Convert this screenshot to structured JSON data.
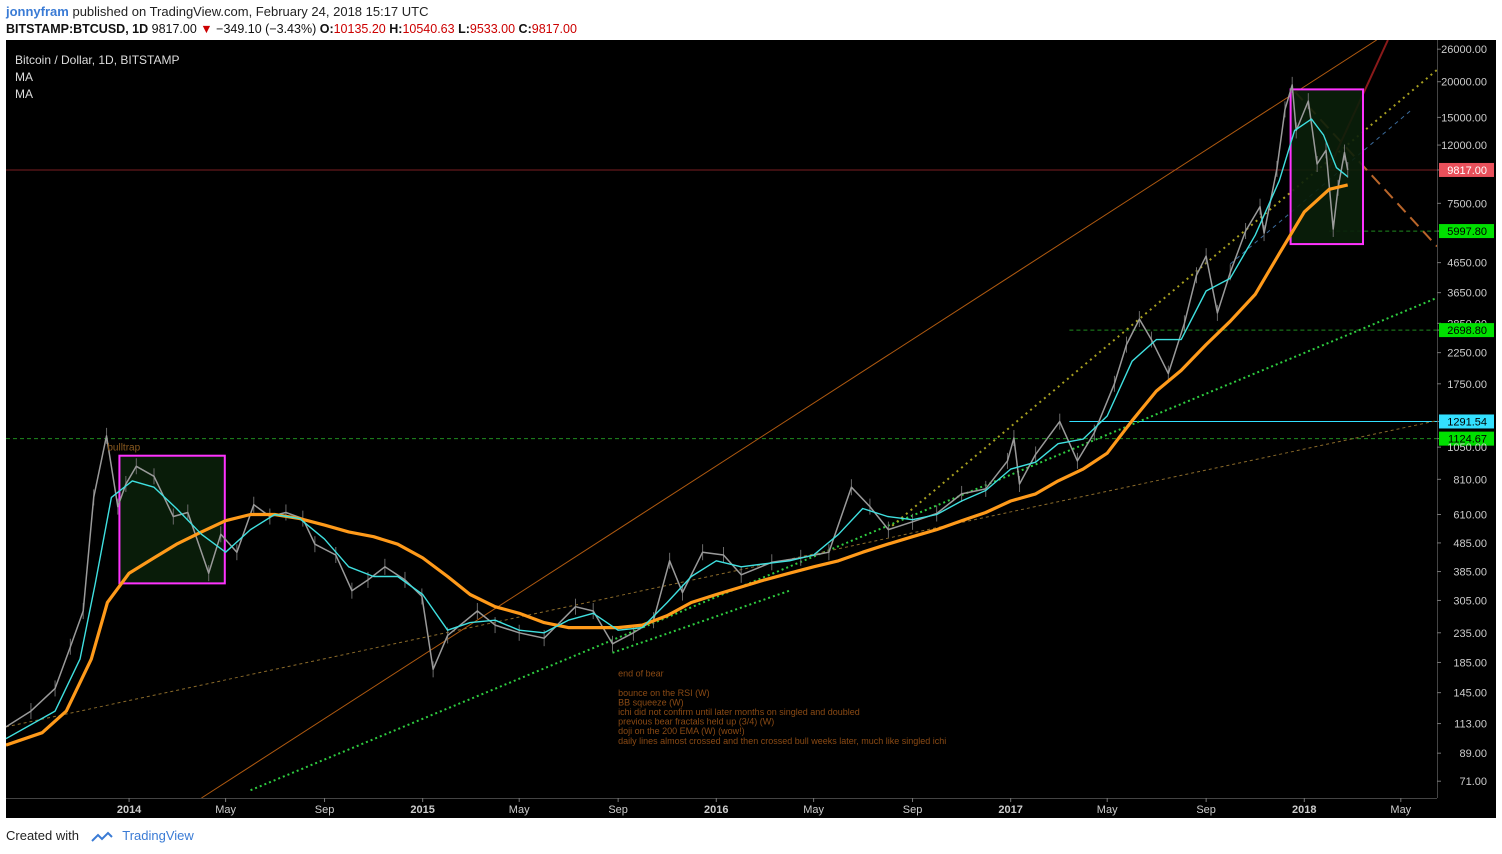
{
  "header": {
    "author": "jonnyfram",
    "published": "published on TradingView.com, February 24, 2018 15:17 UTC",
    "symbol": "BITSTAMP:BTCUSD, 1D",
    "last": "9817.00",
    "change": "−349.10 (−3.43%)",
    "o_label": "O:",
    "o_value": "10135.20",
    "h_label": "H:",
    "h_value": "10540.63",
    "l_label": "L:",
    "l_value": "9533.00",
    "c_label": "C:",
    "c_value": "9817.00"
  },
  "legend": {
    "title": "Bitcoin / Dollar, 1D, BITSTAMP",
    "ma1": "MA",
    "ma2": "MA"
  },
  "footer": {
    "created_with": "Created with",
    "brand": "TradingView"
  },
  "colors": {
    "background": "#000000",
    "candle": "#9a9a9a",
    "ma_fast": "#3fe0e0",
    "ma_slow": "#ff9a1a",
    "box": "#ff33ff",
    "green_dot": "#2ecc40",
    "olive_dot": "#a8a020",
    "orange_line": "#b05a10",
    "last_price": "#e8505b",
    "level_green": "#00e000",
    "level_cyan": "#33e0ff"
  },
  "chart_data": {
    "type": "line",
    "scale": "log",
    "ylim": [
      62,
      28000
    ],
    "xlim": [
      "2013-08-01",
      "2018-06-15"
    ],
    "y_ticks": [
      "26000.00",
      "20000.00",
      "15000.00",
      "12000.00",
      "9817.00",
      "7500.00",
      "5997.80",
      "4650.00",
      "3650.00",
      "2850.00",
      "2698.80",
      "2250.00",
      "1750.00",
      "1291.54",
      "1124.67",
      "1050.00",
      "810.00",
      "610.00",
      "485.00",
      "385.00",
      "305.00",
      "235.00",
      "185.00",
      "145.00",
      "113.00",
      "89.00",
      "71.00"
    ],
    "y_tick_values": [
      26000,
      20000,
      15000,
      12000,
      9817,
      7500,
      5997.8,
      4650,
      3650,
      2850,
      2698.8,
      2250,
      1750,
      1291.54,
      1124.67,
      1050,
      810,
      610,
      485,
      385,
      305,
      235,
      185,
      145,
      113,
      89,
      71
    ],
    "x_ticks": [
      {
        "label": "2014",
        "date": "2014-01-01",
        "bold": true
      },
      {
        "label": "May",
        "date": "2014-05-01"
      },
      {
        "label": "Sep",
        "date": "2014-09-01"
      },
      {
        "label": "2015",
        "date": "2015-01-01",
        "bold": true
      },
      {
        "label": "May",
        "date": "2015-05-01"
      },
      {
        "label": "Sep",
        "date": "2015-09-01"
      },
      {
        "label": "2016",
        "date": "2016-01-01",
        "bold": true
      },
      {
        "label": "May",
        "date": "2016-05-01"
      },
      {
        "label": "Sep",
        "date": "2016-09-01"
      },
      {
        "label": "2017",
        "date": "2017-01-01",
        "bold": true
      },
      {
        "label": "May",
        "date": "2017-05-01"
      },
      {
        "label": "Sep",
        "date": "2017-09-01"
      },
      {
        "label": "2018",
        "date": "2018-01-01",
        "bold": true
      },
      {
        "label": "May",
        "date": "2018-05-01"
      }
    ],
    "price_series": [
      [
        "2013-08-01",
        110
      ],
      [
        "2013-09-01",
        125
      ],
      [
        "2013-10-01",
        150
      ],
      [
        "2013-10-20",
        210
      ],
      [
        "2013-11-05",
        280
      ],
      [
        "2013-11-18",
        700
      ],
      [
        "2013-12-04",
        1150
      ],
      [
        "2013-12-18",
        650
      ],
      [
        "2013-12-28",
        780
      ],
      [
        "2014-01-10",
        900
      ],
      [
        "2014-02-01",
        830
      ],
      [
        "2014-02-25",
        600
      ],
      [
        "2014-03-15",
        620
      ],
      [
        "2014-04-10",
        380
      ],
      [
        "2014-04-25",
        520
      ],
      [
        "2014-05-15",
        450
      ],
      [
        "2014-06-05",
        660
      ],
      [
        "2014-06-25",
        600
      ],
      [
        "2014-07-15",
        620
      ],
      [
        "2014-08-05",
        590
      ],
      [
        "2014-08-20",
        480
      ],
      [
        "2014-09-15",
        440
      ],
      [
        "2014-10-05",
        330
      ],
      [
        "2014-10-25",
        360
      ],
      [
        "2014-11-15",
        400
      ],
      [
        "2014-12-10",
        360
      ],
      [
        "2014-12-31",
        315
      ],
      [
        "2015-01-14",
        175
      ],
      [
        "2015-02-01",
        230
      ],
      [
        "2015-03-10",
        280
      ],
      [
        "2015-04-01",
        250
      ],
      [
        "2015-05-01",
        235
      ],
      [
        "2015-06-01",
        225
      ],
      [
        "2015-07-10",
        290
      ],
      [
        "2015-08-01",
        280
      ],
      [
        "2015-08-25",
        215
      ],
      [
        "2015-09-20",
        235
      ],
      [
        "2015-10-15",
        260
      ],
      [
        "2015-11-04",
        420
      ],
      [
        "2015-11-20",
        325
      ],
      [
        "2015-12-15",
        450
      ],
      [
        "2016-01-10",
        440
      ],
      [
        "2016-02-01",
        375
      ],
      [
        "2016-03-10",
        415
      ],
      [
        "2016-04-15",
        430
      ],
      [
        "2016-05-20",
        450
      ],
      [
        "2016-06-17",
        760
      ],
      [
        "2016-07-10",
        650
      ],
      [
        "2016-08-02",
        540
      ],
      [
        "2016-09-01",
        575
      ],
      [
        "2016-10-01",
        615
      ],
      [
        "2016-11-01",
        720
      ],
      [
        "2016-12-01",
        750
      ],
      [
        "2016-12-28",
        940
      ],
      [
        "2017-01-05",
        1130
      ],
      [
        "2017-01-12",
        780
      ],
      [
        "2017-02-01",
        990
      ],
      [
        "2017-03-03",
        1290
      ],
      [
        "2017-03-25",
        940
      ],
      [
        "2017-04-15",
        1180
      ],
      [
        "2017-05-10",
        1750
      ],
      [
        "2017-05-25",
        2400
      ],
      [
        "2017-06-10",
        2950
      ],
      [
        "2017-06-25",
        2500
      ],
      [
        "2017-07-16",
        1900
      ],
      [
        "2017-08-05",
        2850
      ],
      [
        "2017-08-20",
        4200
      ],
      [
        "2017-09-01",
        4900
      ],
      [
        "2017-09-15",
        3100
      ],
      [
        "2017-10-01",
        4300
      ],
      [
        "2017-10-20",
        6000
      ],
      [
        "2017-11-07",
        7300
      ],
      [
        "2017-11-12",
        5900
      ],
      [
        "2017-11-28",
        9900
      ],
      [
        "2017-12-08",
        16000
      ],
      [
        "2017-12-17",
        19500
      ],
      [
        "2017-12-22",
        13500
      ],
      [
        "2018-01-06",
        17100
      ],
      [
        "2018-01-17",
        10300
      ],
      [
        "2018-01-28",
        11500
      ],
      [
        "2018-02-06",
        6100
      ],
      [
        "2018-02-12",
        8500
      ],
      [
        "2018-02-20",
        11300
      ],
      [
        "2018-02-24",
        9817
      ]
    ],
    "ma_fast": [
      [
        "2013-08-01",
        100
      ],
      [
        "2013-10-01",
        125
      ],
      [
        "2013-11-01",
        190
      ],
      [
        "2013-11-20",
        350
      ],
      [
        "2013-12-10",
        700
      ],
      [
        "2014-01-05",
        800
      ],
      [
        "2014-02-01",
        760
      ],
      [
        "2014-03-01",
        640
      ],
      [
        "2014-04-01",
        520
      ],
      [
        "2014-05-01",
        450
      ],
      [
        "2014-06-01",
        540
      ],
      [
        "2014-07-01",
        610
      ],
      [
        "2014-08-01",
        590
      ],
      [
        "2014-09-01",
        500
      ],
      [
        "2014-10-01",
        400
      ],
      [
        "2014-11-01",
        370
      ],
      [
        "2014-12-01",
        370
      ],
      [
        "2015-01-01",
        320
      ],
      [
        "2015-02-01",
        240
      ],
      [
        "2015-03-01",
        255
      ],
      [
        "2015-04-01",
        260
      ],
      [
        "2015-05-01",
        240
      ],
      [
        "2015-06-01",
        235
      ],
      [
        "2015-07-01",
        260
      ],
      [
        "2015-08-01",
        275
      ],
      [
        "2015-09-01",
        240
      ],
      [
        "2015-10-01",
        245
      ],
      [
        "2015-11-01",
        300
      ],
      [
        "2015-12-01",
        370
      ],
      [
        "2016-01-01",
        420
      ],
      [
        "2016-02-01",
        400
      ],
      [
        "2016-03-01",
        410
      ],
      [
        "2016-04-01",
        420
      ],
      [
        "2016-05-01",
        440
      ],
      [
        "2016-06-01",
        520
      ],
      [
        "2016-07-01",
        640
      ],
      [
        "2016-08-01",
        600
      ],
      [
        "2016-09-01",
        585
      ],
      [
        "2016-10-01",
        610
      ],
      [
        "2016-11-01",
        680
      ],
      [
        "2016-12-01",
        740
      ],
      [
        "2017-01-01",
        880
      ],
      [
        "2017-02-01",
        930
      ],
      [
        "2017-03-01",
        1080
      ],
      [
        "2017-04-01",
        1120
      ],
      [
        "2017-05-01",
        1350
      ],
      [
        "2017-06-01",
        2100
      ],
      [
        "2017-07-01",
        2500
      ],
      [
        "2017-08-01",
        2500
      ],
      [
        "2017-09-01",
        3700
      ],
      [
        "2017-10-01",
        4100
      ],
      [
        "2017-11-01",
        5800
      ],
      [
        "2017-12-01",
        9000
      ],
      [
        "2017-12-20",
        13500
      ],
      [
        "2018-01-10",
        14800
      ],
      [
        "2018-01-25",
        13000
      ],
      [
        "2018-02-10",
        10000
      ],
      [
        "2018-02-24",
        9300
      ]
    ],
    "ma_slow": [
      [
        "2013-08-01",
        95
      ],
      [
        "2013-09-15",
        105
      ],
      [
        "2013-10-15",
        125
      ],
      [
        "2013-11-15",
        190
      ],
      [
        "2013-12-05",
        300
      ],
      [
        "2014-01-01",
        380
      ],
      [
        "2014-02-01",
        430
      ],
      [
        "2014-03-01",
        480
      ],
      [
        "2014-04-01",
        530
      ],
      [
        "2014-05-01",
        580
      ],
      [
        "2014-06-01",
        610
      ],
      [
        "2014-07-01",
        610
      ],
      [
        "2014-08-01",
        590
      ],
      [
        "2014-09-01",
        560
      ],
      [
        "2014-10-01",
        530
      ],
      [
        "2014-11-01",
        510
      ],
      [
        "2014-12-01",
        480
      ],
      [
        "2015-01-01",
        430
      ],
      [
        "2015-02-01",
        370
      ],
      [
        "2015-03-01",
        320
      ],
      [
        "2015-04-01",
        290
      ],
      [
        "2015-05-01",
        275
      ],
      [
        "2015-06-01",
        255
      ],
      [
        "2015-07-01",
        245
      ],
      [
        "2015-08-01",
        245
      ],
      [
        "2015-09-01",
        245
      ],
      [
        "2015-10-01",
        250
      ],
      [
        "2015-11-01",
        270
      ],
      [
        "2015-12-01",
        300
      ],
      [
        "2016-01-01",
        320
      ],
      [
        "2016-02-01",
        340
      ],
      [
        "2016-03-01",
        360
      ],
      [
        "2016-04-01",
        380
      ],
      [
        "2016-05-01",
        400
      ],
      [
        "2016-06-01",
        420
      ],
      [
        "2016-07-01",
        450
      ],
      [
        "2016-08-01",
        480
      ],
      [
        "2016-09-01",
        510
      ],
      [
        "2016-10-01",
        540
      ],
      [
        "2016-11-01",
        580
      ],
      [
        "2016-12-01",
        620
      ],
      [
        "2017-01-01",
        680
      ],
      [
        "2017-02-01",
        720
      ],
      [
        "2017-03-01",
        800
      ],
      [
        "2017-04-01",
        880
      ],
      [
        "2017-05-01",
        1000
      ],
      [
        "2017-06-01",
        1300
      ],
      [
        "2017-07-01",
        1650
      ],
      [
        "2017-08-01",
        1950
      ],
      [
        "2017-09-01",
        2400
      ],
      [
        "2017-10-01",
        2900
      ],
      [
        "2017-11-01",
        3600
      ],
      [
        "2017-12-01",
        5000
      ],
      [
        "2018-01-01",
        7000
      ],
      [
        "2018-02-01",
        8400
      ],
      [
        "2018-02-24",
        8700
      ]
    ],
    "boxes": [
      {
        "x0": "2013-12-20",
        "x1": "2014-04-30",
        "y0": 350,
        "y1": 980
      },
      {
        "x0": "2017-12-15",
        "x1": "2018-03-15",
        "y0": 5400,
        "y1": 18800
      }
    ],
    "trendlines": [
      {
        "style": "green-dotted",
        "x0": "2014-06-01",
        "y0": 66,
        "x1": "2018-06-15",
        "y1": 3500
      },
      {
        "style": "green-dotted",
        "x0": "2015-08-25",
        "y0": 200,
        "x1": "2016-04-01",
        "y1": 330
      },
      {
        "style": "olive-dotted",
        "x0": "2016-08-01",
        "y0": 540,
        "x1": "2018-06-15",
        "y1": 22000
      },
      {
        "style": "thin-dashed",
        "x0": "2013-08-01",
        "y0": 110,
        "x1": "2018-06-15",
        "y1": 1300
      },
      {
        "style": "orange-thin",
        "x0": "2014-04-01",
        "y0": 62,
        "x1": "2018-04-01",
        "y1": 28000
      },
      {
        "style": "orange-dashed",
        "x0": "2017-12-20",
        "y0": 18500,
        "x1": "2018-06-15",
        "y1": 5300
      },
      {
        "style": "red-channel",
        "x0": "2018-02-01",
        "y0": 10000,
        "x1": "2018-04-15",
        "y1": 28000
      },
      {
        "style": "blue-dashed",
        "x0": "2017-10-01",
        "y0": 4600,
        "x1": "2018-05-15",
        "y1": 16000
      }
    ],
    "levels": [
      {
        "value": 1124.67,
        "x0": "2013-08-01",
        "style": "green-dashed"
      },
      {
        "value": 1291.54,
        "x0": "2017-03-15",
        "style": "cyan"
      },
      {
        "value": 2698.8,
        "x0": "2017-03-15",
        "style": "green-dashed"
      },
      {
        "value": 5997.8,
        "x0": "2018-02-01",
        "style": "green-dashed"
      },
      {
        "value": 9817,
        "x0": "2013-08-01",
        "style": "red"
      }
    ],
    "annotations": {
      "bulltrap": {
        "text": "bulltrap",
        "date": "2013-12-05",
        "value": 1020
      },
      "notes_date": "2015-09-01",
      "notes_value": 165,
      "notes": [
        "end of bear",
        "",
        "bounce on the RSI (W)",
        "BB squeeze (W)",
        "ichi did not confirm until later months on singled and doubled",
        "previous bear fractals held up (3/4) (W)",
        "doji on the 200 EMA (W) (wow!)",
        "daily lines almost crossed and then crossed bull weeks later, much like singled ichi"
      ]
    }
  }
}
